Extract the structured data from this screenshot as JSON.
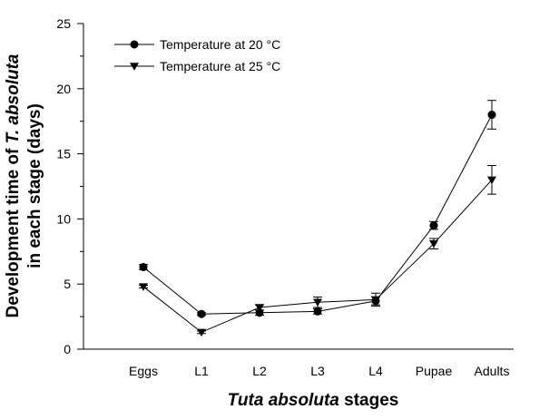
{
  "chart_data": {
    "type": "line",
    "title": "",
    "xlabel_parts": [
      {
        "text": "Tuta absoluta",
        "italic": true
      },
      {
        "text": " stages",
        "italic": false
      }
    ],
    "ylabel_line1_parts": [
      {
        "text": "Development time of ",
        "italic": false
      },
      {
        "text": "T. absoluta",
        "italic": true
      }
    ],
    "ylabel_line2_parts": [
      {
        "text": "in each stage (days)",
        "italic": false
      }
    ],
    "categories": [
      "Eggs",
      "L1",
      "L2",
      "L3",
      "L4",
      "Pupae",
      "Adults"
    ],
    "ylim": [
      0,
      25
    ],
    "yticks": [
      0,
      5,
      10,
      15,
      20,
      25
    ],
    "grid": false,
    "legend_position": "top-left",
    "series": [
      {
        "name": "Temperature at 20 °C",
        "marker": "circle",
        "values": [
          6.3,
          2.7,
          2.8,
          2.9,
          3.7,
          9.5,
          18.0
        ],
        "errors": [
          0.2,
          0.1,
          0.2,
          0.2,
          0.3,
          0.3,
          1.1
        ]
      },
      {
        "name": "Temperature at 25 °C",
        "marker": "triangle-down",
        "values": [
          4.8,
          1.3,
          3.2,
          3.6,
          3.8,
          8.1,
          13.0
        ],
        "errors": [
          0.1,
          0.1,
          0.2,
          0.4,
          0.5,
          0.4,
          1.1
        ]
      }
    ]
  }
}
